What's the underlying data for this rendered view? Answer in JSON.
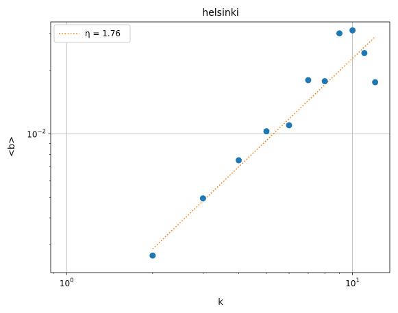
{
  "chart_data": {
    "type": "scatter",
    "title": "helsinki",
    "xlabel": "k",
    "ylabel": "<b>",
    "xscale": "log",
    "yscale": "log",
    "xlim": [
      0.88,
      13.5
    ],
    "ylim": [
      0.0022,
      0.034
    ],
    "grid": true,
    "legend_position": "top-left",
    "x_major_ticks": [
      {
        "value": 1,
        "base": "10",
        "exp": "0"
      },
      {
        "value": 10,
        "base": "10",
        "exp": "1"
      }
    ],
    "y_major_ticks": [
      {
        "value": 0.01,
        "base": "10",
        "exp": "−2"
      }
    ],
    "series": [
      {
        "kind": "points",
        "color": "#1f77b4",
        "x": [
          2,
          3,
          4,
          5,
          6,
          7,
          8,
          9,
          10,
          11,
          12
        ],
        "y": [
          0.00265,
          0.00495,
          0.0075,
          0.0103,
          0.011,
          0.018,
          0.0178,
          0.03,
          0.031,
          0.0242,
          0.0176
        ]
      },
      {
        "kind": "fit",
        "name": "η = 1.76",
        "style": "dotted",
        "color": "#ff7f0e",
        "x": [
          2,
          12
        ],
        "y": [
          0.00285,
          0.0289
        ]
      }
    ]
  }
}
